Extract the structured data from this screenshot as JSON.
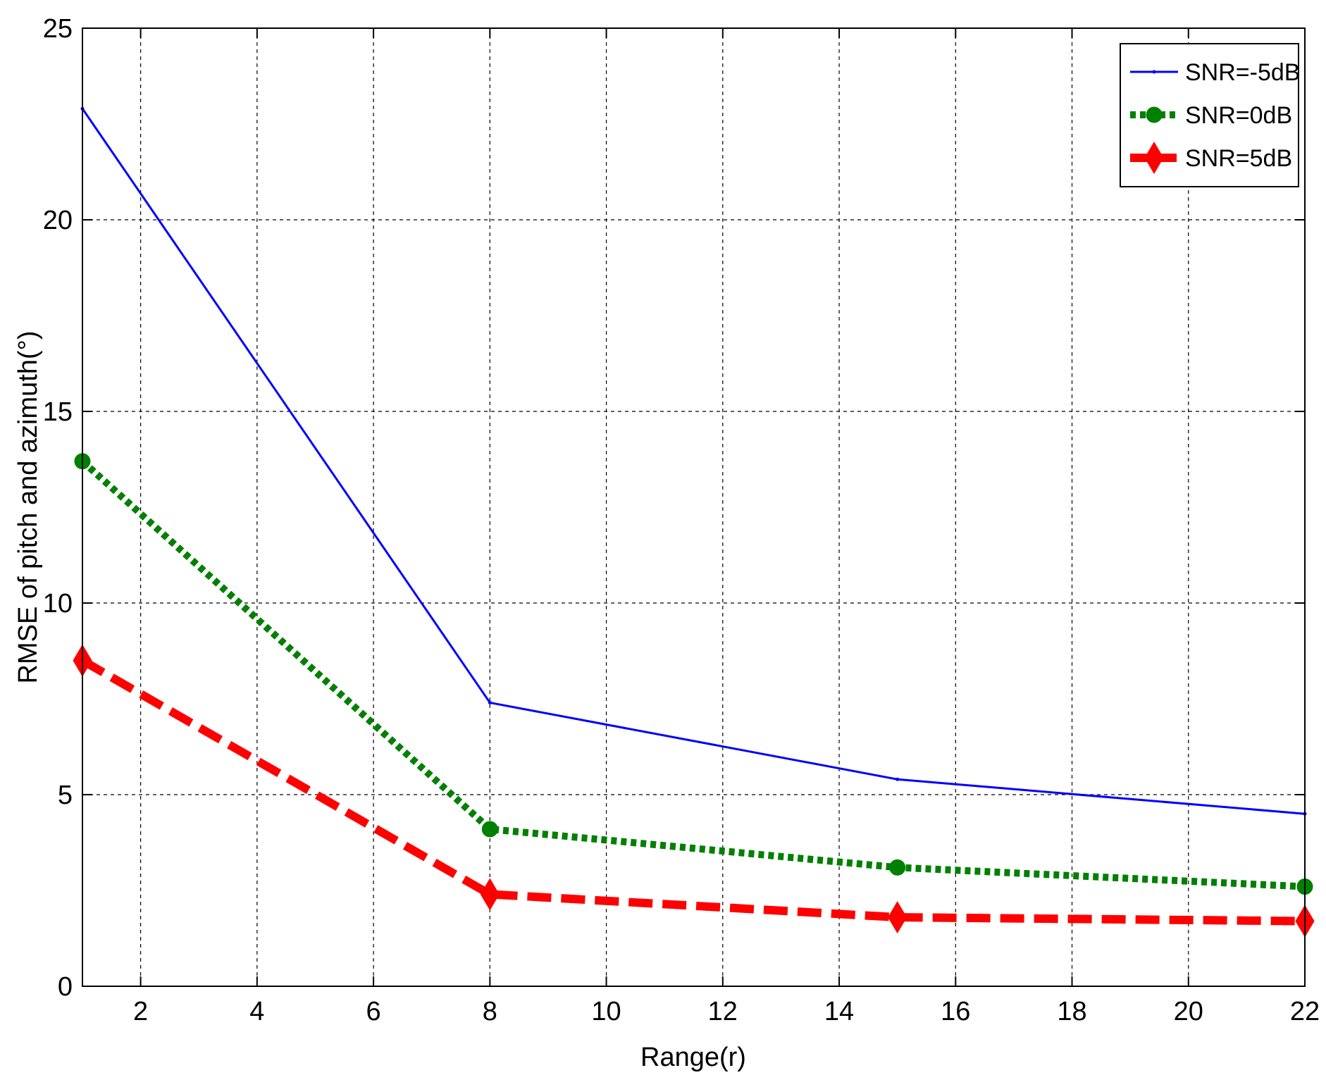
{
  "chart_data": {
    "type": "line",
    "title": "",
    "xlabel": "Range(r)",
    "ylabel": "RMSE of pitch and azimuth(°)",
    "xlim": [
      1,
      22
    ],
    "ylim": [
      0,
      25
    ],
    "x_ticks": [
      2,
      4,
      6,
      8,
      10,
      12,
      14,
      16,
      18,
      20,
      22
    ],
    "y_ticks": [
      0,
      5,
      10,
      15,
      20,
      25
    ],
    "grid": true,
    "legend_position": "top-right",
    "series": [
      {
        "name": "SNR=-5dB",
        "color": "#0000ff",
        "line_style": "solid",
        "marker": "point",
        "points": [
          [
            1,
            22.9
          ],
          [
            8,
            7.4
          ],
          [
            15,
            5.4
          ],
          [
            22,
            4.5
          ]
        ]
      },
      {
        "name": "SNR=0dB",
        "color": "#008000",
        "line_style": "dotted",
        "marker": "circle",
        "points": [
          [
            1,
            13.7
          ],
          [
            8,
            4.1
          ],
          [
            15,
            3.1
          ],
          [
            22,
            2.6
          ]
        ]
      },
      {
        "name": "SNR=5dB",
        "color": "#ff0000",
        "line_style": "dashed",
        "marker": "diamond",
        "points": [
          [
            1,
            8.5
          ],
          [
            8,
            2.4
          ],
          [
            15,
            1.8
          ],
          [
            22,
            1.7
          ]
        ]
      }
    ]
  }
}
